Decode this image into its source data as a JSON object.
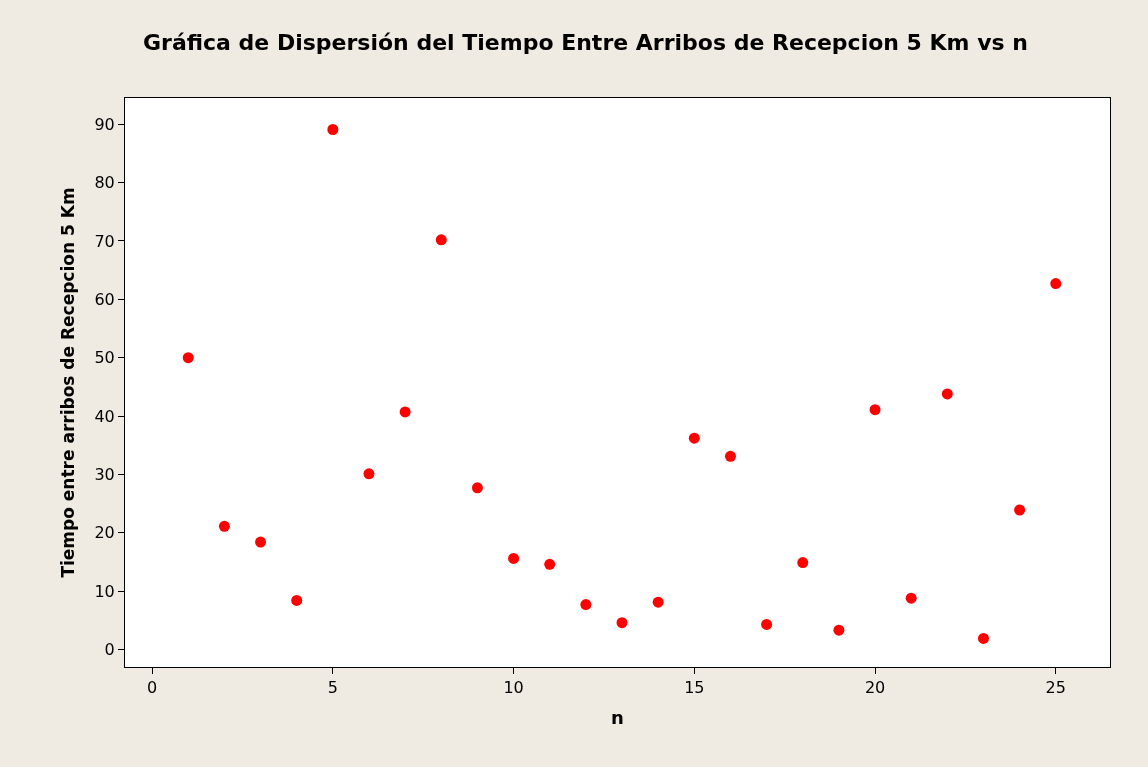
{
  "chart_data": {
    "type": "scatter",
    "title": "Gráfica de Dispersión del Tiempo Entre Arribos de Recepcion 5 Km vs n",
    "xlabel": "n",
    "ylabel": "Tiempo entre arribos de Recepcion 5 Km",
    "x": [
      1,
      2,
      3,
      4,
      5,
      6,
      7,
      8,
      9,
      10,
      11,
      12,
      13,
      14,
      15,
      16,
      17,
      18,
      19,
      20,
      21,
      22,
      23,
      24,
      25
    ],
    "series": [
      {
        "color": "#ff0000",
        "values": [
          50.0,
          21.1,
          18.4,
          8.4,
          89.1,
          30.1,
          40.7,
          70.2,
          27.7,
          15.6,
          14.6,
          7.7,
          4.6,
          8.1,
          36.2,
          33.1,
          4.3,
          14.9,
          3.3,
          41.1,
          8.8,
          43.8,
          1.9,
          23.9,
          62.7
        ]
      }
    ],
    "xlim": [
      -0.75,
      26.5
    ],
    "ylim": [
      -3,
      94.5
    ],
    "xticks": [
      0,
      5,
      10,
      15,
      20,
      25
    ],
    "yticks": [
      0,
      10,
      20,
      30,
      40,
      50,
      60,
      70,
      80,
      90
    ],
    "marker": "circle"
  }
}
